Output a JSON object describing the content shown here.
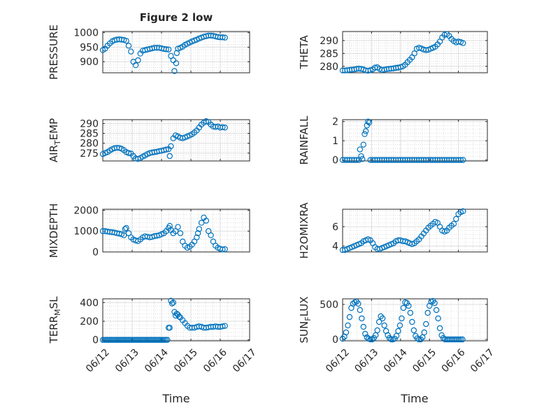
{
  "figure": {
    "title": "Figure 2 low",
    "xlabel": "Time",
    "marker_color": "#0072BD",
    "grid": true,
    "minor_grid": true
  },
  "chart_data": [
    {
      "type": "scatter",
      "ylabel": "PRESSURE",
      "yticks": [
        900,
        950,
        1000
      ],
      "ylim": [
        862,
        1004
      ],
      "xlim": [
        0,
        5
      ],
      "xticks": [
        "06/12",
        "06/13",
        "06/14",
        "06/15",
        "06/16",
        "06/17"
      ],
      "x": [
        0.0,
        0.08,
        0.16,
        0.24,
        0.32,
        0.4,
        0.48,
        0.56,
        0.64,
        0.72,
        0.8,
        0.88,
        0.96,
        1.04,
        1.12,
        1.2,
        1.28,
        1.36,
        1.44,
        1.52,
        1.6,
        1.68,
        1.76,
        1.84,
        1.92,
        2.0,
        2.08,
        2.16,
        2.24,
        2.32,
        2.4,
        2.44,
        2.5,
        2.52,
        2.56,
        2.64,
        2.72,
        2.8,
        2.88,
        2.96,
        3.04,
        3.12,
        3.2,
        3.28,
        3.36,
        3.44,
        3.52,
        3.6,
        3.68,
        3.76,
        3.84,
        3.92,
        4.0,
        4.08,
        4.16
      ],
      "y": [
        940,
        945,
        955,
        963,
        970,
        974,
        976,
        977,
        976,
        975,
        972,
        955,
        935,
        900,
        888,
        905,
        928,
        938,
        940,
        942,
        944,
        946,
        948,
        948,
        948,
        946,
        944,
        943,
        942,
        920,
        905,
        868,
        895,
        930,
        945,
        948,
        952,
        958,
        962,
        966,
        970,
        973,
        976,
        980,
        983,
        986,
        988,
        990,
        990,
        989,
        987,
        985,
        984,
        984,
        983
      ]
    },
    {
      "type": "scatter",
      "ylabel": "THETA",
      "yticks": [
        280,
        285,
        290
      ],
      "ylim": [
        277.5,
        293.5
      ],
      "xlim": [
        0,
        5
      ],
      "xticks": [
        "06/12",
        "06/13",
        "06/14",
        "06/15",
        "06/16",
        "06/17"
      ],
      "x": [
        0.0,
        0.08,
        0.16,
        0.24,
        0.32,
        0.4,
        0.48,
        0.56,
        0.64,
        0.72,
        0.8,
        0.88,
        0.96,
        1.04,
        1.12,
        1.2,
        1.28,
        1.36,
        1.44,
        1.52,
        1.6,
        1.68,
        1.76,
        1.84,
        1.92,
        2.0,
        2.08,
        2.16,
        2.24,
        2.32,
        2.4,
        2.48,
        2.56,
        2.64,
        2.72,
        2.8,
        2.88,
        2.96,
        3.04,
        3.12,
        3.2,
        3.28,
        3.36,
        3.44,
        3.52,
        3.6,
        3.68,
        3.76,
        3.84,
        3.92,
        4.0,
        4.08,
        4.16
      ],
      "y": [
        278.4,
        278.4,
        278.5,
        278.6,
        278.7,
        278.8,
        279.0,
        279.1,
        279.0,
        278.8,
        278.4,
        278.3,
        278.5,
        278.8,
        279.5,
        279.6,
        279.0,
        278.6,
        278.7,
        278.9,
        279.0,
        279.1,
        279.2,
        279.4,
        279.5,
        279.7,
        280.0,
        280.6,
        281.6,
        282.5,
        283.5,
        285.0,
        286.8,
        287.2,
        286.9,
        286.5,
        286.3,
        286.4,
        286.8,
        287.2,
        287.6,
        288.5,
        289.6,
        291.2,
        292.2,
        292.5,
        291.8,
        290.6,
        289.8,
        289.3,
        289.6,
        289.4,
        289.0
      ]
    },
    {
      "type": "scatter",
      "ylabel": "AIR_TEMP",
      "yticks": [
        275,
        280,
        285,
        290
      ],
      "ylim": [
        271,
        292
      ],
      "xlim": [
        0,
        5
      ],
      "xticks": [
        "06/12",
        "06/13",
        "06/14",
        "06/15",
        "06/16",
        "06/17"
      ],
      "x": [
        0.0,
        0.08,
        0.16,
        0.24,
        0.32,
        0.4,
        0.48,
        0.56,
        0.64,
        0.72,
        0.8,
        0.88,
        0.96,
        1.04,
        1.12,
        1.2,
        1.28,
        1.36,
        1.44,
        1.52,
        1.6,
        1.68,
        1.76,
        1.84,
        1.92,
        2.0,
        2.08,
        2.16,
        2.24,
        2.28,
        2.32,
        2.4,
        2.48,
        2.56,
        2.64,
        2.72,
        2.8,
        2.88,
        2.96,
        3.04,
        3.12,
        3.2,
        3.28,
        3.36,
        3.44,
        3.52,
        3.6,
        3.68,
        3.76,
        3.84,
        3.92,
        4.0,
        4.08,
        4.16
      ],
      "y": [
        274.5,
        275.0,
        275.5,
        276.3,
        277.0,
        277.5,
        277.7,
        277.6,
        277.2,
        276.5,
        275.5,
        275.0,
        274.8,
        273.5,
        272.3,
        272.0,
        272.5,
        273.2,
        273.8,
        274.5,
        275.0,
        275.3,
        275.5,
        275.7,
        276.0,
        276.2,
        276.5,
        276.8,
        277.0,
        273.5,
        278.5,
        282.5,
        284.0,
        283.5,
        282.8,
        282.6,
        283.0,
        283.5,
        284.0,
        284.6,
        285.5,
        286.5,
        288.0,
        289.5,
        290.5,
        291.2,
        290.8,
        289.5,
        288.5,
        288.3,
        288.5,
        288.0,
        288.2,
        288.0
      ]
    },
    {
      "type": "scatter",
      "ylabel": "RAINFALL",
      "yticks": [
        0,
        1,
        2
      ],
      "ylim": [
        -0.05,
        2.1
      ],
      "xlim": [
        0,
        5
      ],
      "xticks": [
        "06/12",
        "06/13",
        "06/14",
        "06/15",
        "06/16",
        "06/17"
      ],
      "x": [
        0.0,
        0.08,
        0.16,
        0.24,
        0.32,
        0.4,
        0.48,
        0.56,
        0.6,
        0.64,
        0.68,
        0.72,
        0.76,
        0.8,
        0.84,
        0.88,
        0.92,
        0.96,
        1.04,
        1.12,
        1.2,
        1.28,
        1.36,
        1.44,
        1.52,
        1.6,
        1.68,
        1.76,
        1.84,
        1.92,
        2.0,
        2.08,
        2.16,
        2.24,
        2.32,
        2.4,
        2.48,
        2.56,
        2.64,
        2.72,
        2.8,
        2.88,
        2.96,
        3.04,
        3.12,
        3.2,
        3.28,
        3.36,
        3.44,
        3.52,
        3.6,
        3.68,
        3.76,
        3.84,
        3.92,
        4.0,
        4.08,
        4.16
      ],
      "y": [
        0,
        0,
        0,
        0,
        0,
        0,
        0,
        0,
        0.55,
        0.2,
        0.05,
        0.8,
        1.35,
        1.5,
        1.8,
        2.0,
        1.95,
        0,
        0,
        0,
        0,
        0,
        0,
        0,
        0,
        0,
        0,
        0,
        0,
        0,
        0,
        0,
        0,
        0,
        0,
        0,
        0,
        0,
        0,
        0,
        0,
        0,
        0,
        0,
        0,
        0,
        0,
        0,
        0,
        0,
        0,
        0,
        0,
        0,
        0,
        0,
        0,
        0
      ]
    },
    {
      "type": "scatter",
      "ylabel": "MIXDEPTH",
      "yticks": [
        0,
        1000,
        2000
      ],
      "ylim": [
        0,
        2050
      ],
      "xlim": [
        0,
        5
      ],
      "xticks": [
        "06/12",
        "06/13",
        "06/14",
        "06/15",
        "06/16",
        "06/17"
      ],
      "x": [
        0.0,
        0.08,
        0.16,
        0.24,
        0.32,
        0.4,
        0.48,
        0.56,
        0.64,
        0.72,
        0.76,
        0.8,
        0.88,
        0.96,
        1.04,
        1.12,
        1.2,
        1.28,
        1.36,
        1.44,
        1.52,
        1.6,
        1.68,
        1.76,
        1.84,
        1.92,
        2.0,
        2.08,
        2.16,
        2.24,
        2.28,
        2.32,
        2.4,
        2.48,
        2.56,
        2.64,
        2.72,
        2.8,
        2.88,
        2.96,
        3.04,
        3.12,
        3.2,
        3.24,
        3.28,
        3.36,
        3.44,
        3.52,
        3.6,
        3.68,
        3.76,
        3.84,
        3.92,
        4.0,
        4.08,
        4.16
      ],
      "y": [
        1000,
        1000,
        980,
        960,
        950,
        930,
        900,
        880,
        850,
        800,
        1100,
        1150,
        900,
        700,
        600,
        550,
        520,
        600,
        700,
        750,
        730,
        700,
        720,
        760,
        780,
        800,
        850,
        900,
        1000,
        1150,
        1250,
        1050,
        900,
        1000,
        1200,
        900,
        500,
        300,
        200,
        250,
        350,
        500,
        700,
        900,
        1100,
        1400,
        1650,
        1500,
        1000,
        800,
        500,
        300,
        200,
        150,
        120,
        130
      ]
    },
    {
      "type": "scatter",
      "ylabel": "H2OMIXRA",
      "yticks": [
        4,
        6
      ],
      "ylim": [
        3.4,
        7.8
      ],
      "xlim": [
        0,
        5
      ],
      "xticks": [
        "06/12",
        "06/13",
        "06/14",
        "06/15",
        "06/16",
        "06/17"
      ],
      "x": [
        0.0,
        0.08,
        0.16,
        0.24,
        0.32,
        0.4,
        0.48,
        0.56,
        0.64,
        0.72,
        0.8,
        0.88,
        0.96,
        1.04,
        1.12,
        1.2,
        1.28,
        1.36,
        1.44,
        1.52,
        1.6,
        1.68,
        1.76,
        1.84,
        1.92,
        2.0,
        2.08,
        2.16,
        2.24,
        2.32,
        2.4,
        2.48,
        2.56,
        2.64,
        2.72,
        2.8,
        2.88,
        2.96,
        3.04,
        3.12,
        3.2,
        3.28,
        3.36,
        3.44,
        3.52,
        3.6,
        3.68,
        3.76,
        3.84,
        3.92,
        4.0,
        4.08,
        4.16
      ],
      "y": [
        3.6,
        3.6,
        3.7,
        3.8,
        3.9,
        4.0,
        4.1,
        4.2,
        4.3,
        4.5,
        4.6,
        4.7,
        4.6,
        4.3,
        3.9,
        3.7,
        3.7,
        3.8,
        3.9,
        4.0,
        4.1,
        4.2,
        4.3,
        4.5,
        4.6,
        4.6,
        4.5,
        4.5,
        4.4,
        4.3,
        4.2,
        4.3,
        4.5,
        4.7,
        5.0,
        5.3,
        5.6,
        5.9,
        6.1,
        6.3,
        6.5,
        6.4,
        6.0,
        5.6,
        5.5,
        5.6,
        5.9,
        6.1,
        6.3,
        6.8,
        7.3,
        7.5,
        7.6
      ]
    },
    {
      "type": "scatter",
      "ylabel": "TERR_MSL",
      "yticks": [
        0,
        200,
        400
      ],
      "ylim": [
        -10,
        440
      ],
      "xlim": [
        0,
        5
      ],
      "xticks": [
        "06/12",
        "06/13",
        "06/14",
        "06/15",
        "06/16",
        "06/17"
      ],
      "x": [
        0.0,
        0.05,
        0.1,
        0.15,
        0.2,
        0.25,
        0.3,
        0.35,
        0.4,
        0.45,
        0.5,
        0.55,
        0.6,
        0.65,
        0.7,
        0.75,
        0.8,
        0.85,
        0.9,
        0.95,
        1.0,
        1.05,
        1.1,
        1.15,
        1.2,
        1.25,
        1.3,
        1.35,
        1.4,
        1.45,
        1.5,
        1.55,
        1.6,
        1.65,
        1.7,
        1.75,
        1.8,
        1.85,
        1.9,
        1.95,
        2.0,
        2.05,
        2.1,
        2.15,
        2.2,
        2.24,
        2.28,
        2.32,
        2.36,
        2.4,
        2.44,
        2.48,
        2.52,
        2.56,
        2.6,
        2.64,
        2.72,
        2.8,
        2.88,
        2.96,
        3.04,
        3.12,
        3.2,
        3.28,
        3.36,
        3.44,
        3.52,
        3.6,
        3.68,
        3.76,
        3.84,
        3.92,
        4.0,
        4.08,
        4.16
      ],
      "y": [
        0,
        0,
        0,
        0,
        0,
        0,
        0,
        0,
        0,
        0,
        0,
        0,
        0,
        0,
        0,
        0,
        0,
        0,
        0,
        0,
        0,
        0,
        0,
        0,
        0,
        0,
        0,
        0,
        0,
        0,
        0,
        0,
        0,
        0,
        0,
        0,
        0,
        0,
        0,
        0,
        0,
        0,
        0,
        0,
        0,
        130,
        130,
        420,
        390,
        400,
        300,
        260,
        280,
        270,
        250,
        240,
        210,
        180,
        150,
        130,
        130,
        130,
        140,
        145,
        140,
        130,
        130,
        135,
        140,
        140,
        145,
        140,
        140,
        145,
        150
      ]
    },
    {
      "type": "scatter",
      "ylabel": "SUN_FLUX",
      "yticks": [
        0,
        500
      ],
      "ylim": [
        -20,
        580
      ],
      "xlim": [
        0,
        5
      ],
      "xticks": [
        "06/12",
        "06/13",
        "06/14",
        "06/15",
        "06/16",
        "06/17"
      ],
      "x": [
        0.0,
        0.06,
        0.12,
        0.18,
        0.24,
        0.3,
        0.36,
        0.42,
        0.48,
        0.54,
        0.6,
        0.66,
        0.72,
        0.78,
        0.84,
        0.9,
        0.96,
        1.02,
        1.08,
        1.14,
        1.2,
        1.26,
        1.32,
        1.38,
        1.44,
        1.5,
        1.56,
        1.62,
        1.68,
        1.74,
        1.8,
        1.86,
        1.92,
        1.98,
        2.04,
        2.1,
        2.16,
        2.22,
        2.28,
        2.34,
        2.4,
        2.46,
        2.52,
        2.58,
        2.64,
        2.7,
        2.76,
        2.82,
        2.88,
        2.94,
        3.0,
        3.06,
        3.12,
        3.18,
        3.24,
        3.3,
        3.36,
        3.42,
        3.48,
        3.54,
        3.6,
        3.66,
        3.72,
        3.78,
        3.84,
        3.9,
        3.96,
        4.02,
        4.08,
        4.14
      ],
      "y": [
        10,
        40,
        100,
        200,
        320,
        450,
        510,
        530,
        540,
        510,
        420,
        300,
        180,
        80,
        30,
        10,
        0,
        0,
        20,
        60,
        130,
        250,
        330,
        300,
        200,
        120,
        60,
        20,
        0,
        0,
        10,
        50,
        120,
        200,
        300,
        450,
        530,
        520,
        480,
        380,
        250,
        130,
        50,
        15,
        0,
        0,
        30,
        100,
        220,
        380,
        480,
        540,
        550,
        520,
        420,
        300,
        160,
        60,
        20,
        0,
        0,
        0,
        0,
        0,
        0,
        0,
        0,
        0,
        0,
        0
      ]
    }
  ]
}
